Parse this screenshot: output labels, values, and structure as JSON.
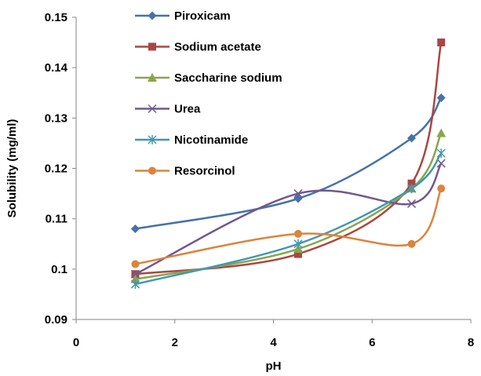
{
  "chart_data": {
    "type": "line",
    "title": "",
    "xlabel": "pH",
    "ylabel": "Solubility (mg/ml)",
    "xlim": [
      0,
      8
    ],
    "ylim": [
      0.09,
      0.15
    ],
    "xticks": [
      "0",
      "2",
      "4",
      "6",
      "8"
    ],
    "yticks": [
      "0.09",
      "0.1",
      "0.11",
      "0.12",
      "0.13",
      "0.14",
      "0.15"
    ],
    "grid": false,
    "smooth": true,
    "legend_position": "top-center",
    "series": [
      {
        "name": "Piroxicam",
        "color": "#4572A7",
        "marker": "diamond",
        "x": [
          1.2,
          4.5,
          6.8,
          7.4
        ],
        "y": [
          0.108,
          0.114,
          0.126,
          0.134
        ]
      },
      {
        "name": "Sodium acetate",
        "color": "#AA4643",
        "marker": "square",
        "x": [
          1.2,
          4.5,
          6.8,
          7.4
        ],
        "y": [
          0.099,
          0.103,
          0.117,
          0.145
        ]
      },
      {
        "name": "Saccharine sodium",
        "color": "#89A54E",
        "marker": "triangle",
        "x": [
          1.2,
          4.5,
          6.8,
          7.4
        ],
        "y": [
          0.098,
          0.104,
          0.116,
          0.127
        ]
      },
      {
        "name": "Urea",
        "color": "#71588F",
        "marker": "x",
        "x": [
          1.2,
          4.5,
          6.8,
          7.4
        ],
        "y": [
          0.099,
          0.115,
          0.113,
          0.121
        ]
      },
      {
        "name": "Nicotinamide",
        "color": "#4198AF",
        "marker": "star",
        "x": [
          1.2,
          4.5,
          6.8,
          7.4
        ],
        "y": [
          0.097,
          0.105,
          0.116,
          0.123
        ]
      },
      {
        "name": "Resorcinol",
        "color": "#DB843D",
        "marker": "circle",
        "x": [
          1.2,
          4.5,
          6.8,
          7.4
        ],
        "y": [
          0.101,
          0.107,
          0.105,
          0.116
        ]
      }
    ]
  }
}
